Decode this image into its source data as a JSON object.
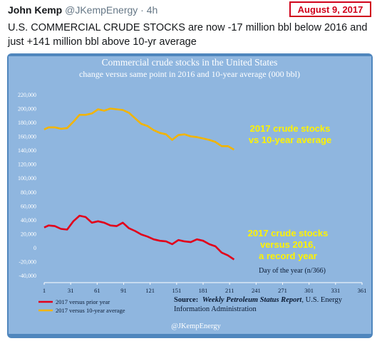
{
  "tweet": {
    "author_name": "John Kemp",
    "author_handle": "@JKempEnergy",
    "separator": "·",
    "time": "4h",
    "text": "U.S. COMMERCIAL CRUDE STOCKS are now -17 million bbl below 2016 and just +141 million bbl above 10-yr average"
  },
  "date_badge": "August 9, 2017",
  "colors": {
    "background": "#4f86bd",
    "plot_background": "#8fb6df",
    "prior_year": "#e2001a",
    "ten_year": "#f2b400",
    "annotation_yellow": "#fff200",
    "text_dark": "#0a1a33"
  },
  "chart_data": {
    "type": "line",
    "title": "Commercial crude stocks in the United States",
    "subtitle": "change versus same point in 2016 and 10-year average (000 bbl)",
    "xlabel": "Day of the year (n/366)",
    "ylabel": "",
    "xlim": [
      1,
      361
    ],
    "ylim": [
      -40000,
      220000
    ],
    "xticks": [
      1,
      31,
      61,
      91,
      121,
      151,
      181,
      211,
      241,
      271,
      301,
      331,
      361
    ],
    "yticks": [
      -40000,
      -20000,
      0,
      20000,
      40000,
      60000,
      80000,
      100000,
      120000,
      140000,
      160000,
      180000,
      200000,
      220000
    ],
    "ytick_labels": [
      "-40,000",
      "-20,000",
      "0",
      "20,000",
      "40,000",
      "60,000",
      "80,000",
      "100,000",
      "120,000",
      "140,000",
      "160,000",
      "180,000",
      "200,000",
      "220,000"
    ],
    "grid": false,
    "legend_position": "bottom-left",
    "series": [
      {
        "name": "2017 versus prior year",
        "x": [
          1,
          6,
          13,
          20,
          27,
          34,
          41,
          48,
          55,
          62,
          69,
          76,
          83,
          90,
          97,
          104,
          111,
          118,
          125,
          132,
          139,
          146,
          153,
          160,
          167,
          174,
          181,
          188,
          195,
          202,
          209,
          216
        ],
        "y": [
          29000,
          32000,
          31000,
          27000,
          26000,
          38000,
          46000,
          44000,
          36000,
          38000,
          36000,
          32000,
          31000,
          36000,
          28000,
          24000,
          19000,
          16000,
          12000,
          10000,
          9000,
          5000,
          11000,
          9000,
          8000,
          12000,
          10000,
          5000,
          2000,
          -7000,
          -11000,
          -17000
        ]
      },
      {
        "name": "2017 versus 10-year average",
        "x": [
          1,
          6,
          13,
          20,
          27,
          34,
          41,
          48,
          55,
          62,
          69,
          76,
          83,
          90,
          97,
          104,
          111,
          118,
          125,
          132,
          139,
          146,
          153,
          160,
          167,
          174,
          181,
          188,
          195,
          202,
          209,
          216
        ],
        "y": [
          170000,
          173000,
          173000,
          171000,
          172000,
          181000,
          191000,
          191000,
          193000,
          199000,
          197000,
          200000,
          199000,
          198000,
          194000,
          186000,
          178000,
          175000,
          169000,
          165000,
          163000,
          155000,
          162000,
          163000,
          160000,
          159000,
          157000,
          155000,
          152000,
          146000,
          146000,
          141000
        ]
      }
    ],
    "annotations": [
      {
        "text": "2017 crude stocks",
        "line2": "vs 10-year average",
        "line3": ""
      },
      {
        "text": "2017 crude stocks",
        "line2": "versus 2016,",
        "line3": "a record year"
      }
    ],
    "source": {
      "label": "Source:",
      "italic": "Weekly Petroleum Status Report",
      "rest": ", U.S. Energy",
      "line2": "Information Administration"
    },
    "credit": "@JKempEnergy"
  }
}
